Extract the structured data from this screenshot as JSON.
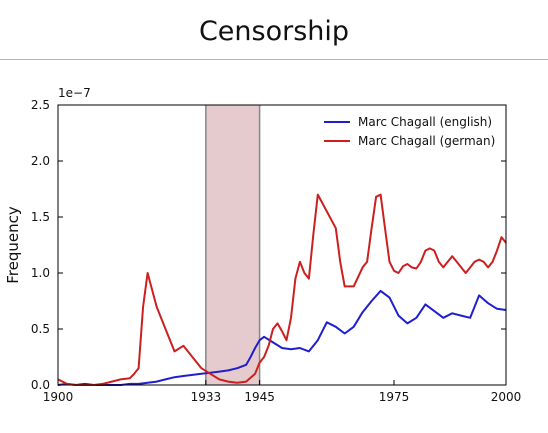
{
  "title": "Censorship",
  "chart_data": {
    "type": "line",
    "title": "Censorship",
    "xlabel": "",
    "ylabel": "Frequency",
    "y_multiplier_label": "1e−7",
    "xlim": [
      1900,
      2000
    ],
    "ylim": [
      0,
      2.5
    ],
    "x_ticks": [
      1900,
      1933,
      1945,
      1975,
      2000
    ],
    "y_ticks": [
      "0.0",
      "0.5",
      "1.0",
      "1.5",
      "2.0",
      "2.5"
    ],
    "legend_position": "top-right",
    "shaded_region": {
      "from": 1933,
      "to": 1945,
      "color": "#dcb9bc"
    },
    "series": [
      {
        "name": "Marc Chagall (english)",
        "color": "#1f1fd0",
        "x": [
          1900,
          1902,
          1904,
          1906,
          1908,
          1910,
          1912,
          1914,
          1916,
          1918,
          1920,
          1922,
          1924,
          1926,
          1928,
          1930,
          1932,
          1934,
          1936,
          1938,
          1940,
          1942,
          1943,
          1944,
          1945,
          1946,
          1948,
          1950,
          1952,
          1954,
          1956,
          1958,
          1960,
          1962,
          1964,
          1966,
          1968,
          1970,
          1972,
          1974,
          1976,
          1978,
          1980,
          1982,
          1984,
          1986,
          1988,
          1990,
          1992,
          1994,
          1996,
          1998,
          2000
        ],
        "y": [
          0.0,
          0.01,
          0.0,
          0.01,
          0.0,
          0.0,
          0.0,
          0.0,
          0.01,
          0.01,
          0.02,
          0.03,
          0.05,
          0.07,
          0.08,
          0.09,
          0.1,
          0.11,
          0.12,
          0.13,
          0.15,
          0.18,
          0.25,
          0.33,
          0.4,
          0.43,
          0.38,
          0.33,
          0.32,
          0.33,
          0.3,
          0.4,
          0.56,
          0.52,
          0.46,
          0.52,
          0.65,
          0.75,
          0.84,
          0.78,
          0.62,
          0.55,
          0.6,
          0.72,
          0.66,
          0.6,
          0.64,
          0.62,
          0.6,
          0.8,
          0.73,
          0.68,
          0.67
        ]
      },
      {
        "name": "Marc Chagall (german)",
        "color": "#cc1f1f",
        "x": [
          1900,
          1902,
          1904,
          1906,
          1908,
          1910,
          1912,
          1914,
          1916,
          1917,
          1918,
          1919,
          1920,
          1922,
          1924,
          1926,
          1928,
          1930,
          1932,
          1934,
          1936,
          1938,
          1940,
          1942,
          1944,
          1945,
          1946,
          1947,
          1948,
          1949,
          1950,
          1951,
          1952,
          1953,
          1954,
          1955,
          1956,
          1957,
          1958,
          1960,
          1962,
          1963,
          1964,
          1966,
          1968,
          1969,
          1970,
          1971,
          1972,
          1973,
          1974,
          1975,
          1976,
          1977,
          1978,
          1979,
          1980,
          1981,
          1982,
          1983,
          1984,
          1985,
          1986,
          1987,
          1988,
          1989,
          1990,
          1991,
          1992,
          1993,
          1994,
          1995,
          1996,
          1997,
          1998,
          1999,
          2000
        ],
        "y": [
          0.05,
          0.01,
          0.0,
          0.0,
          0.0,
          0.01,
          0.03,
          0.05,
          0.06,
          0.1,
          0.15,
          0.7,
          1.0,
          0.7,
          0.5,
          0.3,
          0.35,
          0.25,
          0.15,
          0.1,
          0.05,
          0.03,
          0.02,
          0.03,
          0.1,
          0.2,
          0.25,
          0.35,
          0.5,
          0.55,
          0.48,
          0.4,
          0.6,
          0.95,
          1.1,
          1.0,
          0.95,
          1.35,
          1.7,
          1.55,
          1.4,
          1.1,
          0.88,
          0.88,
          1.05,
          1.1,
          1.4,
          1.68,
          1.7,
          1.4,
          1.1,
          1.02,
          1.0,
          1.06,
          1.08,
          1.05,
          1.04,
          1.1,
          1.2,
          1.22,
          1.2,
          1.1,
          1.05,
          1.1,
          1.15,
          1.1,
          1.05,
          1.0,
          1.05,
          1.1,
          1.12,
          1.1,
          1.05,
          1.1,
          1.2,
          1.32,
          1.27
        ]
      }
    ]
  }
}
